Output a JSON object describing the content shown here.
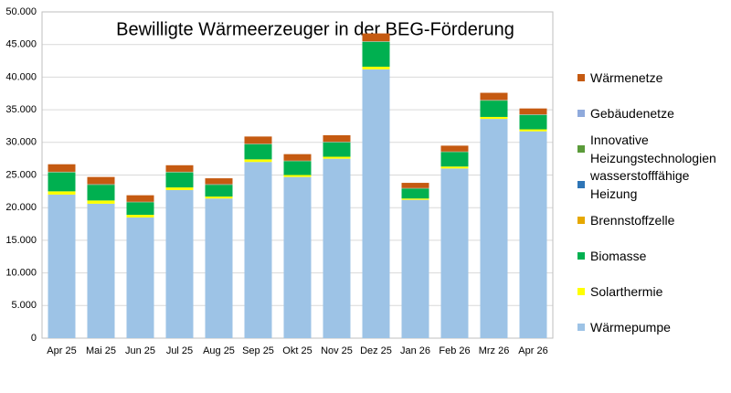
{
  "chart_data": {
    "type": "stacked_bar",
    "title": "Bewilligte Wärmeerzeuger in der BEG-Förderung",
    "categories": [
      "Apr 25",
      "Mai 25",
      "Jun 25",
      "Jul 25",
      "Aug 25",
      "Sep 25",
      "Okt 25",
      "Nov 25",
      "Dez 25",
      "Jan 26",
      "Feb 26",
      "Mrz 26",
      "Apr 26"
    ],
    "series": [
      {
        "name": "Wärmepumpe",
        "color": "#9dc3e6",
        "values": [
          22000,
          20600,
          18500,
          22700,
          21400,
          27000,
          24700,
          27500,
          41200,
          21200,
          26000,
          33600,
          31700
        ]
      },
      {
        "name": "Solarthermie",
        "color": "#ffff00",
        "values": [
          500,
          500,
          400,
          400,
          300,
          400,
          300,
          300,
          400,
          200,
          300,
          300,
          300
        ]
      },
      {
        "name": "Biomasse",
        "color": "#00b050",
        "values": [
          2900,
          2400,
          1900,
          2300,
          1800,
          2300,
          2100,
          2200,
          3800,
          1500,
          2200,
          2500,
          2200
        ]
      },
      {
        "name": "Brennstoffzelle",
        "color": "#e6a800",
        "values": [
          20,
          20,
          20,
          20,
          20,
          20,
          20,
          20,
          20,
          20,
          20,
          20,
          20
        ]
      },
      {
        "name": "wasserstofffähige Heizung",
        "color": "#2e75b6",
        "values": [
          10,
          10,
          10,
          10,
          10,
          10,
          10,
          10,
          10,
          10,
          10,
          10,
          10
        ]
      },
      {
        "name": "Innovative Heizungstechnologien",
        "color": "#5b9b3a",
        "values": [
          30,
          30,
          30,
          30,
          30,
          30,
          30,
          30,
          30,
          30,
          30,
          30,
          30
        ]
      },
      {
        "name": "Gebäudenetze",
        "color": "#8faadc",
        "values": [
          40,
          40,
          40,
          40,
          40,
          40,
          40,
          40,
          40,
          40,
          40,
          40,
          40
        ]
      },
      {
        "name": "Wärmenetze",
        "color": "#c55a11",
        "values": [
          1150,
          1100,
          1000,
          1000,
          900,
          1100,
          1000,
          1000,
          1200,
          800,
          900,
          1100,
          900
        ]
      }
    ],
    "ylim": [
      0,
      50000
    ],
    "yticks": [
      0,
      {
        "value": 5000,
        "label": "5.000"
      },
      {
        "value": 10000,
        "label": "10.000"
      },
      {
        "value": 15000,
        "label": "15.000"
      },
      {
        "value": 20000,
        "label": "20.000"
      },
      {
        "value": 25000,
        "label": "25.000"
      },
      {
        "value": 30000,
        "label": "30.000"
      },
      {
        "value": 35000,
        "label": "35.000"
      },
      {
        "value": 40000,
        "label": "40.000"
      },
      {
        "value": 45000,
        "label": "45.000"
      },
      {
        "value": 50000,
        "label": "50.000"
      }
    ],
    "grid": true,
    "legend": "right"
  }
}
